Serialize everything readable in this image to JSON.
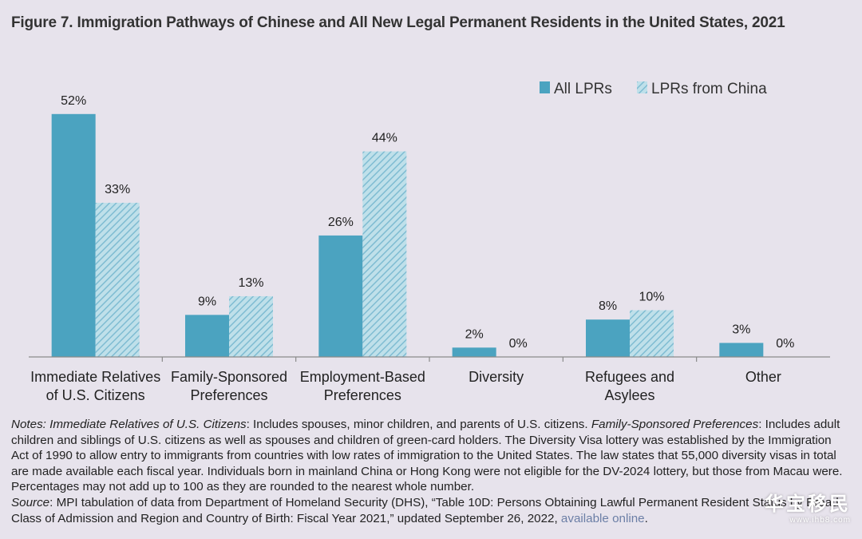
{
  "title": "Figure 7. Immigration Pathways of Chinese and All New Legal Permanent Residents in the United States, 2021",
  "chart_data": {
    "type": "bar",
    "categories": [
      [
        "Immediate Relatives",
        "of U.S. Citizens"
      ],
      [
        "Family-Sponsored",
        "Preferences"
      ],
      [
        "Employment-Based",
        "Preferences"
      ],
      [
        "Diversity"
      ],
      [
        "Refugees and",
        "Asylees"
      ],
      [
        "Other"
      ]
    ],
    "series": [
      {
        "name": "All LPRs",
        "values": [
          52,
          9,
          26,
          2,
          8,
          3
        ],
        "labels": [
          "52%",
          "9%",
          "26%",
          "2%",
          "8%",
          "3%"
        ],
        "color": "#4ba3c0",
        "pattern": "solid"
      },
      {
        "name": "LPRs from China",
        "values": [
          33,
          13,
          44,
          0,
          10,
          0
        ],
        "labels": [
          "33%",
          "13%",
          "44%",
          "0%",
          "10%",
          "0%"
        ],
        "color": "#93c8da",
        "pattern": "hatched"
      }
    ],
    "ylim": [
      0,
      55
    ],
    "legend_position": "top-right",
    "grid": false
  },
  "notes": {
    "notes_label": "Notes:",
    "ir_term": "Immediate Relatives of U.S. Citizens",
    "ir_text": ": Includes spouses, minor children, and parents of U.S. citizens.",
    "fs_term": "Family-Sponsored Preferences",
    "fs_text": ": Includes adult children and siblings of U.S. citizens as well as spouses and children of green-card holders. The Diversity Visa lottery was established by the Immigration Act of 1990 to allow entry to immigrants from countries with low rates of immigration to the United States. The law states that 55,000 diversity visas in total are made available each fiscal year. Individuals born in mainland China or Hong Kong were not eligible for the DV-2024 lottery, but those from Macau were. Percentages may not add up to 100 as they are rounded to the nearest whole number.",
    "source_label": "Source",
    "source_text": ": MPI tabulation of data from Department of Homeland Security (DHS), “Table 10D: Persons Obtaining Lawful Permanent Resident Status by Broad Class of Admission and Region and Country of Birth: Fiscal Year 2021,” updated September 26, 2022, ",
    "link_text": "available online",
    "end": "."
  },
  "watermark": {
    "main": "华宝移民",
    "url": "www.ihb8.com"
  }
}
